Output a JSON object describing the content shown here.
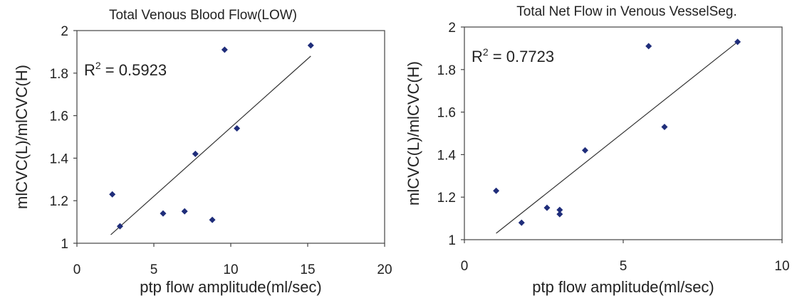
{
  "chart_data": [
    {
      "type": "scatter",
      "title": "Total Venous Blood Flow(LOW)",
      "xlabel": "ptp flow amplitude(ml/sec)",
      "ylabel": "mlCVC(L)/mlCVC(H)",
      "xlim": [
        0,
        20
      ],
      "ylim": [
        1,
        2
      ],
      "xticks": [
        "0",
        "5",
        "10",
        "15",
        "20"
      ],
      "yticks": [
        "1",
        "1.2",
        "1.4",
        "1.6",
        "1.8",
        "2"
      ],
      "annotation": {
        "prefix": "R",
        "sup": "2",
        "suffix": " = 0.5923"
      },
      "marker_color": "#1f2d7a",
      "points": [
        {
          "x": 2.3,
          "y": 1.23
        },
        {
          "x": 2.8,
          "y": 1.08
        },
        {
          "x": 5.6,
          "y": 1.14
        },
        {
          "x": 7.0,
          "y": 1.15
        },
        {
          "x": 7.7,
          "y": 1.42
        },
        {
          "x": 8.8,
          "y": 1.11
        },
        {
          "x": 9.6,
          "y": 1.91
        },
        {
          "x": 10.4,
          "y": 1.54
        },
        {
          "x": 15.2,
          "y": 1.93
        }
      ],
      "trendline": {
        "x": [
          2.2,
          15.2
        ],
        "y": [
          1.04,
          1.88
        ]
      },
      "grid": false
    },
    {
      "type": "scatter",
      "title": "Total Net Flow in Venous VesselSeg.",
      "xlabel": "ptp flow amplitude(ml/sec)",
      "ylabel": "mlCVC(L)/mlCVC(H)",
      "xlim": [
        0,
        10
      ],
      "ylim": [
        1,
        2
      ],
      "xticks": [
        "0",
        "5",
        "10"
      ],
      "yticks": [
        "1",
        "1.2",
        "1.4",
        "1.6",
        "1.8",
        "2"
      ],
      "annotation": {
        "prefix": "R",
        "sup": "2",
        "suffix": " = 0.7723"
      },
      "marker_color": "#1f2d7a",
      "points": [
        {
          "x": 1.0,
          "y": 1.23
        },
        {
          "x": 1.8,
          "y": 1.08
        },
        {
          "x": 2.6,
          "y": 1.15
        },
        {
          "x": 3.0,
          "y": 1.14
        },
        {
          "x": 3.0,
          "y": 1.12
        },
        {
          "x": 3.8,
          "y": 1.42
        },
        {
          "x": 5.8,
          "y": 1.91
        },
        {
          "x": 6.3,
          "y": 1.53
        },
        {
          "x": 8.6,
          "y": 1.93
        }
      ],
      "trendline": {
        "x": [
          1.0,
          8.6
        ],
        "y": [
          1.03,
          1.93
        ]
      },
      "grid": false
    }
  ]
}
